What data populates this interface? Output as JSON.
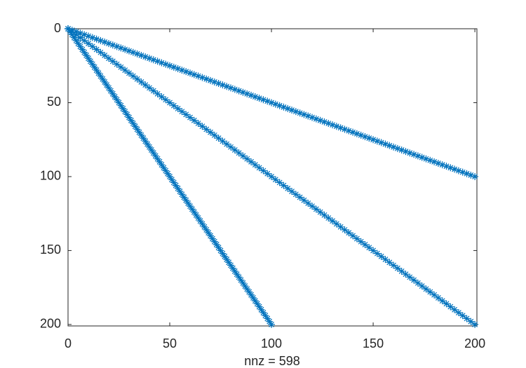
{
  "chart_data": {
    "type": "scatter",
    "xlabel": "nnz = 598",
    "color": "#0072bd",
    "xlim": [
      0,
      201
    ],
    "ylim": [
      0,
      201
    ],
    "y_reversed": true,
    "xticks": [
      0,
      50,
      100,
      150,
      200
    ],
    "yticks": [
      0,
      50,
      100,
      150,
      200
    ],
    "series": [
      {
        "x": [
          0,
          2,
          4,
          6,
          8,
          10,
          12,
          14,
          16,
          18,
          20,
          22,
          24,
          26,
          28,
          30,
          32,
          34,
          36,
          38,
          40,
          42,
          44,
          46,
          48,
          50,
          52,
          54,
          56,
          58,
          60,
          62,
          64,
          66,
          68,
          70,
          72,
          74,
          76,
          78,
          80,
          82,
          84,
          86,
          88,
          90,
          92,
          94,
          96,
          98,
          100,
          102,
          104,
          106,
          108,
          110,
          112,
          114,
          116,
          118,
          120,
          122,
          124,
          126,
          128,
          130,
          132,
          134,
          136,
          138,
          140,
          142,
          144,
          146,
          148,
          150,
          152,
          154,
          156,
          158,
          160,
          162,
          164,
          166,
          168,
          170,
          172,
          174,
          176,
          178,
          180,
          182,
          184,
          186,
          188,
          190,
          192,
          194,
          196,
          198,
          200
        ],
        "y": [
          0,
          1,
          2,
          3,
          4,
          5,
          6,
          7,
          8,
          9,
          10,
          11,
          12,
          13,
          14,
          15,
          16,
          17,
          18,
          19,
          20,
          21,
          22,
          23,
          24,
          25,
          26,
          27,
          28,
          29,
          30,
          31,
          32,
          33,
          34,
          35,
          36,
          37,
          38,
          39,
          40,
          41,
          42,
          43,
          44,
          45,
          46,
          47,
          48,
          49,
          50,
          51,
          52,
          53,
          54,
          55,
          56,
          57,
          58,
          59,
          60,
          61,
          62,
          63,
          64,
          65,
          66,
          67,
          68,
          69,
          70,
          71,
          72,
          73,
          74,
          75,
          76,
          77,
          78,
          79,
          80,
          81,
          82,
          83,
          84,
          85,
          86,
          87,
          88,
          89,
          90,
          91,
          92,
          93,
          94,
          95,
          96,
          97,
          98,
          99,
          100
        ]
      },
      {
        "x": [
          0,
          2,
          4,
          6,
          8,
          10,
          12,
          14,
          16,
          18,
          20,
          22,
          24,
          26,
          28,
          30,
          32,
          34,
          36,
          38,
          40,
          42,
          44,
          46,
          48,
          50,
          52,
          54,
          56,
          58,
          60,
          62,
          64,
          66,
          68,
          70,
          72,
          74,
          76,
          78,
          80,
          82,
          84,
          86,
          88,
          90,
          92,
          94,
          96,
          98,
          100,
          102,
          104,
          106,
          108,
          110,
          112,
          114,
          116,
          118,
          120,
          122,
          124,
          126,
          128,
          130,
          132,
          134,
          136,
          138,
          140,
          142,
          144,
          146,
          148,
          150,
          152,
          154,
          156,
          158,
          160,
          162,
          164,
          166,
          168,
          170,
          172,
          174,
          176,
          178,
          180,
          182,
          184,
          186,
          188,
          190,
          192,
          194,
          196,
          198,
          200
        ],
        "y": [
          0,
          2,
          4,
          6,
          8,
          10,
          12,
          14,
          16,
          18,
          20,
          22,
          24,
          26,
          28,
          30,
          32,
          34,
          36,
          38,
          40,
          42,
          44,
          46,
          48,
          50,
          52,
          54,
          56,
          58,
          60,
          62,
          64,
          66,
          68,
          70,
          72,
          74,
          76,
          78,
          80,
          82,
          84,
          86,
          88,
          90,
          92,
          94,
          96,
          98,
          100,
          102,
          104,
          106,
          108,
          110,
          112,
          114,
          116,
          118,
          120,
          122,
          124,
          126,
          128,
          130,
          132,
          134,
          136,
          138,
          140,
          142,
          144,
          146,
          148,
          150,
          152,
          154,
          156,
          158,
          160,
          162,
          164,
          166,
          168,
          170,
          172,
          174,
          176,
          178,
          180,
          182,
          184,
          186,
          188,
          190,
          192,
          194,
          196,
          198,
          200
        ]
      },
      {
        "x": [
          0,
          1,
          2,
          3,
          4,
          5,
          6,
          7,
          8,
          9,
          10,
          11,
          12,
          13,
          14,
          15,
          16,
          17,
          18,
          19,
          20,
          21,
          22,
          23,
          24,
          25,
          26,
          27,
          28,
          29,
          30,
          31,
          32,
          33,
          34,
          35,
          36,
          37,
          38,
          39,
          40,
          41,
          42,
          43,
          44,
          45,
          46,
          47,
          48,
          49,
          50,
          51,
          52,
          53,
          54,
          55,
          56,
          57,
          58,
          59,
          60,
          61,
          62,
          63,
          64,
          65,
          66,
          67,
          68,
          69,
          70,
          71,
          72,
          73,
          74,
          75,
          76,
          77,
          78,
          79,
          80,
          81,
          82,
          83,
          84,
          85,
          86,
          87,
          88,
          89,
          90,
          91,
          92,
          93,
          94,
          95,
          96,
          97,
          98,
          99,
          100
        ],
        "y": [
          0,
          2,
          4,
          6,
          8,
          10,
          12,
          14,
          16,
          18,
          20,
          22,
          24,
          26,
          28,
          30,
          32,
          34,
          36,
          38,
          40,
          42,
          44,
          46,
          48,
          50,
          52,
          54,
          56,
          58,
          60,
          62,
          64,
          66,
          68,
          70,
          72,
          74,
          76,
          78,
          80,
          82,
          84,
          86,
          88,
          90,
          92,
          94,
          96,
          98,
          100,
          102,
          104,
          106,
          108,
          110,
          112,
          114,
          116,
          118,
          120,
          122,
          124,
          126,
          128,
          130,
          132,
          134,
          136,
          138,
          140,
          142,
          144,
          146,
          148,
          150,
          152,
          154,
          156,
          158,
          160,
          162,
          164,
          166,
          168,
          170,
          172,
          174,
          176,
          178,
          180,
          182,
          184,
          186,
          188,
          190,
          192,
          194,
          196,
          198,
          200
        ]
      }
    ]
  }
}
